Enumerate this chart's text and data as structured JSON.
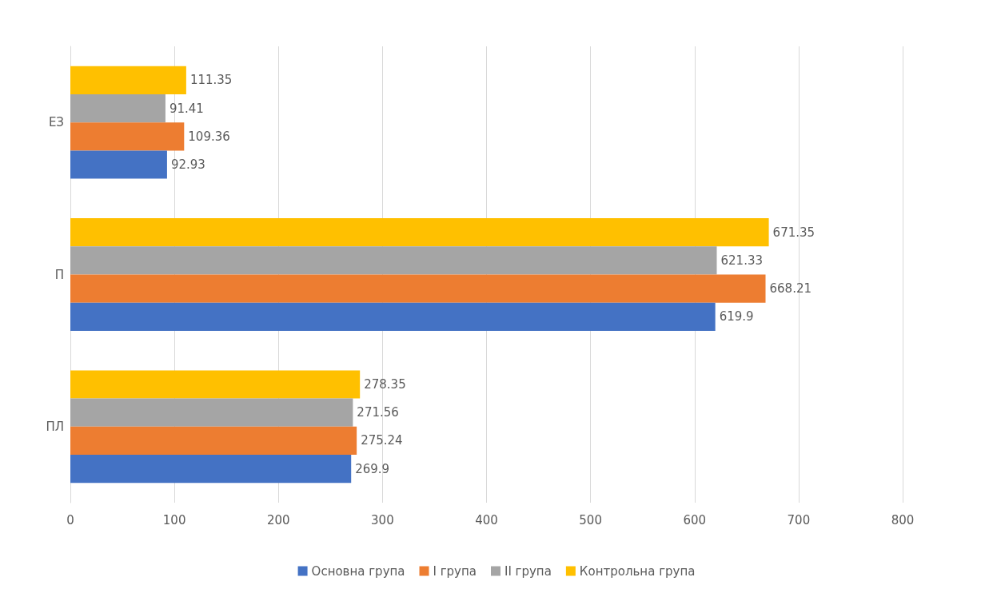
{
  "chart_data": {
    "type": "bar",
    "orientation": "horizontal",
    "categories": [
      "ЕЗ",
      "П",
      "ПЛ"
    ],
    "series": [
      {
        "name": "Основна група",
        "color": "#4472c4",
        "values": [
          92.93,
          619.9,
          269.9
        ]
      },
      {
        "name": "І група",
        "color": "#ed7d31",
        "values": [
          109.36,
          668.21,
          275.24
        ]
      },
      {
        "name": "ІІ група",
        "color": "#a5a5a5",
        "values": [
          91.41,
          621.33,
          271.56
        ]
      },
      {
        "name": "Контрольна група",
        "color": "#ffc000",
        "values": [
          111.35,
          671.35,
          278.35
        ]
      }
    ],
    "xlim": [
      0,
      800
    ],
    "xticks": [
      0,
      100,
      200,
      300,
      400,
      500,
      600,
      700,
      800
    ],
    "grid": "x",
    "legend": "bottom",
    "data_labels": true
  }
}
